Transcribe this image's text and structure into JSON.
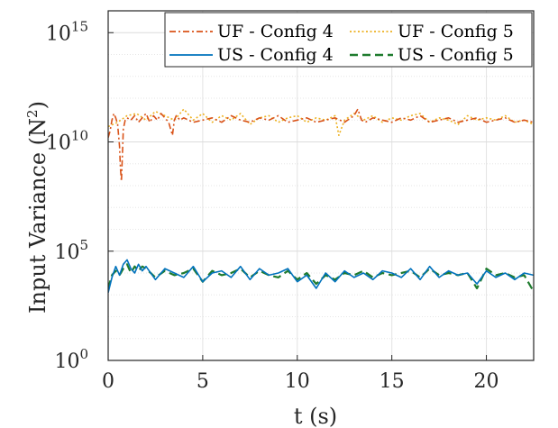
{
  "chart_data": {
    "type": "line",
    "title": "",
    "xlabel": "t (s)",
    "ylabel": "Input Variance (N",
    "ylabel_exp": "2",
    "ylabel_close": ")",
    "xlim": [
      0,
      22.5
    ],
    "ylim_log10": [
      0,
      16
    ],
    "y_scale": "log",
    "grid": true,
    "legend_position": "top-right",
    "x_ticks": [
      "0",
      "5",
      "10",
      "15",
      "20"
    ],
    "x_tick_values": [
      0,
      5,
      10,
      15,
      20
    ],
    "y_ticks": [
      {
        "base": "10",
        "exp": "0",
        "log10": 0
      },
      {
        "base": "10",
        "exp": "5",
        "log10": 5
      },
      {
        "base": "10",
        "exp": "10",
        "log10": 10
      },
      {
        "base": "10",
        "exp": "15",
        "log10": 15
      }
    ],
    "series": [
      {
        "name": "UF - Config 4",
        "color": "#D95319",
        "style": "dashdot",
        "x": [
          0,
          0.1,
          0.2,
          0.3,
          0.4,
          0.5,
          0.6,
          0.65,
          0.7,
          0.75,
          0.8,
          0.9,
          1.0,
          1.2,
          1.4,
          1.6,
          1.8,
          2.0,
          2.2,
          2.4,
          2.6,
          2.8,
          3.0,
          3.2,
          3.4,
          3.5,
          3.6,
          3.8,
          4.0,
          4.5,
          5.0,
          5.5,
          6.0,
          6.5,
          7.0,
          7.5,
          8.0,
          8.5,
          9.0,
          9.5,
          10.0,
          10.5,
          11.0,
          11.5,
          12.0,
          12.5,
          13.0,
          13.2,
          13.4,
          13.6,
          14.0,
          14.5,
          15.0,
          15.5,
          16.0,
          16.5,
          17.0,
          17.5,
          18.0,
          18.5,
          19.0,
          19.5,
          20.0,
          20.5,
          21.0,
          21.5,
          22.0,
          22.5
        ],
        "y": [
          10.2,
          10.5,
          11.0,
          11.3,
          11.1,
          10.8,
          9.8,
          8.8,
          8.2,
          9.3,
          10.6,
          11.0,
          11.1,
          11.0,
          11.2,
          10.9,
          11.1,
          11.3,
          10.9,
          11.2,
          11.0,
          11.3,
          11.1,
          10.9,
          10.3,
          11.0,
          11.2,
          11.0,
          11.1,
          10.9,
          11.0,
          11.1,
          10.9,
          11.2,
          11.0,
          10.9,
          11.1,
          11.0,
          11.2,
          10.9,
          11.0,
          11.1,
          10.9,
          11.0,
          11.1,
          10.9,
          11.2,
          11.5,
          11.0,
          10.9,
          11.1,
          11.0,
          10.9,
          11.1,
          11.0,
          11.2,
          10.9,
          11.0,
          11.1,
          10.9,
          11.0,
          11.1,
          10.9,
          11.0,
          11.1,
          10.9,
          11.0,
          10.9
        ]
      },
      {
        "name": "UF - Config 5",
        "color": "#EDB120",
        "style": "dotted",
        "x": [
          0,
          0.5,
          1.0,
          1.5,
          2.0,
          2.5,
          3.0,
          3.5,
          4.0,
          4.5,
          5.0,
          5.5,
          6.0,
          6.5,
          7.0,
          7.5,
          8.0,
          8.5,
          9.0,
          9.5,
          10.0,
          10.5,
          11.0,
          11.5,
          12.0,
          12.2,
          12.5,
          13.0,
          13.5,
          14.0,
          14.5,
          15.0,
          15.5,
          16.0,
          16.5,
          17.0,
          17.5,
          18.0,
          18.5,
          19.0,
          19.5,
          20.0,
          20.5,
          21.0,
          21.5,
          22.0,
          22.5
        ],
        "y": [
          10.7,
          10.9,
          11.2,
          11.3,
          11.0,
          11.4,
          11.2,
          11.0,
          11.5,
          11.0,
          11.3,
          10.9,
          11.2,
          11.0,
          11.3,
          10.8,
          11.1,
          11.2,
          10.9,
          11.1,
          11.2,
          10.9,
          11.1,
          11.0,
          11.2,
          10.3,
          11.0,
          11.3,
          11.0,
          11.2,
          10.9,
          11.1,
          11.0,
          11.2,
          11.3,
          10.9,
          11.1,
          11.0,
          10.8,
          11.2,
          11.0,
          11.1,
          11.0,
          11.2,
          10.9,
          11.0,
          10.8
        ]
      },
      {
        "name": "US - Config 4",
        "color": "#0072BD",
        "style": "solid",
        "x": [
          0,
          0.2,
          0.4,
          0.6,
          0.8,
          1.0,
          1.2,
          1.4,
          1.6,
          1.8,
          2.0,
          2.5,
          3.0,
          3.5,
          4.0,
          4.5,
          5.0,
          5.5,
          6.0,
          6.5,
          7.0,
          7.5,
          8.0,
          8.5,
          9.0,
          9.5,
          10.0,
          10.5,
          11.0,
          11.5,
          12.0,
          12.5,
          13.0,
          13.5,
          14.0,
          14.5,
          15.0,
          15.5,
          16.0,
          16.5,
          17.0,
          17.5,
          18.0,
          18.5,
          19.0,
          19.5,
          20.0,
          20.5,
          21.0,
          21.5,
          22.0,
          22.5
        ],
        "y": [
          3.1,
          3.8,
          4.3,
          3.9,
          4.4,
          4.6,
          4.2,
          4.0,
          4.4,
          4.1,
          4.3,
          3.7,
          4.2,
          4.0,
          3.8,
          4.3,
          3.6,
          4.0,
          4.1,
          3.8,
          4.3,
          3.7,
          4.2,
          3.9,
          4.0,
          4.2,
          3.6,
          3.9,
          3.3,
          4.0,
          3.6,
          4.1,
          3.8,
          4.0,
          3.7,
          4.1,
          4.0,
          3.8,
          4.2,
          3.7,
          4.3,
          3.8,
          4.1,
          3.9,
          4.0,
          3.5,
          4.1,
          3.8,
          4.0,
          3.7,
          4.0,
          3.9
        ]
      },
      {
        "name": "US - Config 5",
        "color": "#1E7B2E",
        "style": "dashed",
        "x": [
          0,
          0.2,
          0.4,
          0.6,
          0.8,
          1.0,
          1.2,
          1.4,
          1.6,
          1.8,
          2.0,
          2.5,
          3.0,
          3.5,
          4.0,
          4.5,
          5.0,
          5.5,
          6.0,
          6.5,
          7.0,
          7.5,
          8.0,
          8.5,
          9.0,
          9.5,
          10.0,
          10.5,
          11.0,
          11.5,
          12.0,
          12.5,
          13.0,
          13.5,
          14.0,
          14.5,
          15.0,
          15.5,
          16.0,
          16.5,
          17.0,
          17.5,
          18.0,
          18.5,
          19.0,
          19.5,
          20.0,
          20.5,
          21.0,
          21.5,
          22.0,
          22.4,
          22.5
        ],
        "y": [
          3.3,
          3.9,
          4.1,
          3.9,
          4.2,
          4.4,
          4.0,
          4.3,
          4.1,
          4.3,
          4.2,
          3.8,
          4.1,
          3.9,
          4.0,
          4.2,
          3.6,
          4.1,
          3.9,
          4.0,
          4.2,
          3.8,
          4.1,
          3.9,
          3.8,
          4.1,
          3.7,
          4.0,
          3.5,
          3.9,
          3.7,
          4.0,
          3.9,
          4.1,
          3.8,
          4.0,
          3.9,
          4.0,
          4.1,
          3.8,
          4.2,
          3.9,
          4.0,
          3.9,
          4.0,
          3.3,
          4.2,
          3.9,
          4.0,
          3.8,
          3.9,
          3.3,
          3.2
        ]
      }
    ]
  }
}
